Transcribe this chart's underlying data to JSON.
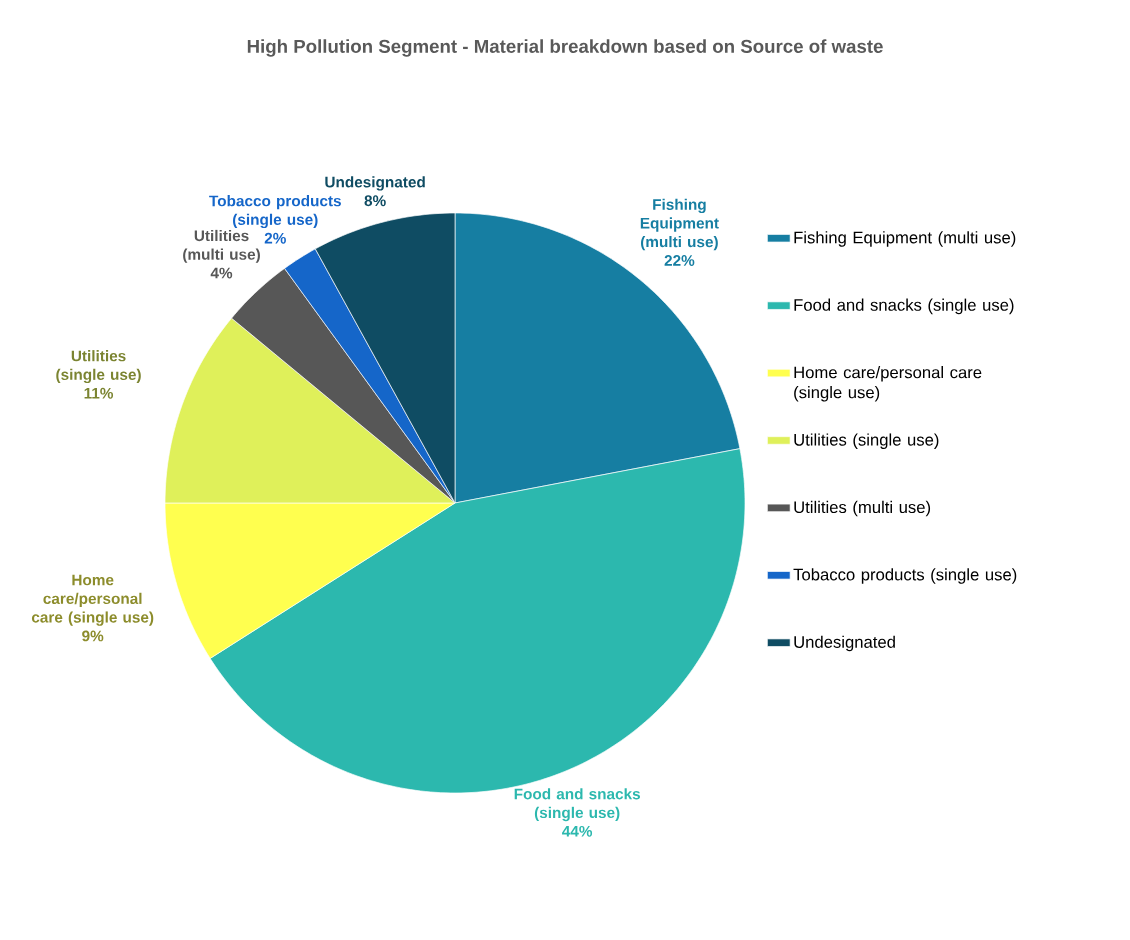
{
  "chart_data": {
    "type": "pie",
    "title": "High Pollution Segment - Material breakdown based on Source of waste",
    "categories": [
      "Fishing Equipment (multi use)",
      "Food and snacks (single use)",
      "Home care/personal care (single use)",
      "Utilities (single use)",
      "Utilities (multi use)",
      "Tobacco products (single use)",
      "Undesignated"
    ],
    "values": [
      22,
      44,
      9,
      11,
      4,
      2,
      8
    ],
    "value_labels": [
      "22%",
      "44%",
      "9%",
      "11%",
      "4%",
      "2%",
      "8%"
    ],
    "colors": [
      "#167ea2",
      "#2cb8ae",
      "#ffff4f",
      "#dff05a",
      "#575757",
      "#1566c9",
      "#0f4c63"
    ],
    "legend": "right"
  }
}
